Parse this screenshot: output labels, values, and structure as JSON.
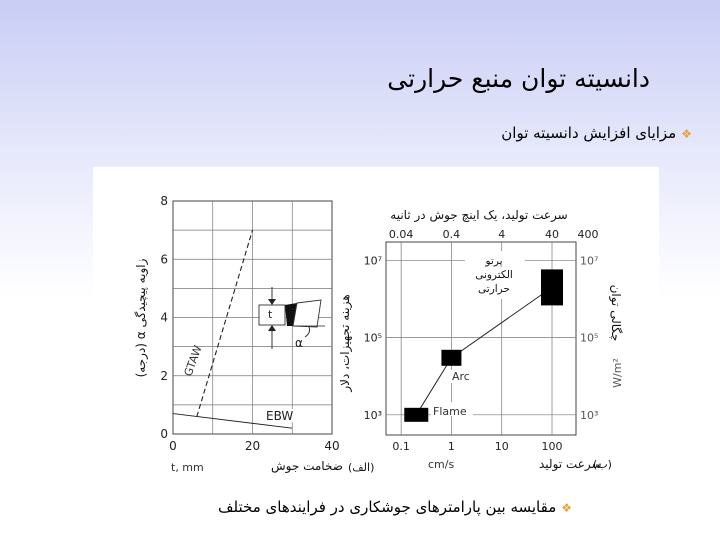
{
  "slide": {
    "title": "دانسیته توان منبع حرارتی",
    "bullet_top": "مزایای افزایش دانسیته توان",
    "bullet_bottom": "مقایسه بین پارامترهای جوشکاری در فرایندهای مختلف",
    "bullet_symbol": "❖",
    "accent_color": "#e8a33a"
  },
  "left_chart": {
    "panel_label": "(الف)",
    "ylabel": "زاویه پیچیدگی α (درجه)",
    "xlabel_unit": "t, mm",
    "xlabel": "ضخامت جوش",
    "x_ticks": [
      "0",
      "20",
      "40"
    ],
    "y_ticks": [
      "0",
      "2",
      "4",
      "6",
      "8"
    ],
    "inset_t": "t",
    "inset_alpha": "α",
    "curve_labels": {
      "gtaw": "GTAW",
      "ebw": "EBW"
    }
  },
  "right_chart": {
    "panel_label": "(ب)",
    "top_title": "سرعت تولید، یک اینچ جوش در ثانیه",
    "top_ticks": [
      "0.04",
      "0.4",
      "4",
      "40",
      "400"
    ],
    "bottom_ticks": [
      "0.1",
      "1",
      "10",
      "100"
    ],
    "xlabel_unit": "cm/s",
    "xlabel": "سرعت تولید",
    "ylabel_left": "هزینه تجهیزات، دلار",
    "ylabel_right": "چگالی توان",
    "ylabel_right_unit": "W/m²",
    "y_ticks_left": [
      "10³",
      "10⁵",
      "10⁷"
    ],
    "y_ticks_right": [
      "10³",
      "10⁵",
      "10⁷"
    ],
    "point_labels": {
      "flame": "Flame",
      "arc": "Arc",
      "ebeam_l1": "پرتو",
      "ebeam_l2": "الکترونی",
      "ebeam_l3": "حرارتی"
    }
  },
  "chart_data": [
    {
      "type": "line",
      "xlim": [
        0,
        40
      ],
      "ylim": [
        0,
        8
      ],
      "grid": true,
      "series": [
        {
          "name": "GTAW",
          "style": "dashed",
          "x": [
            6,
            20
          ],
          "y": [
            0.6,
            7.0
          ]
        },
        {
          "name": "EBW",
          "style": "solid",
          "x": [
            0,
            30
          ],
          "y": [
            0.7,
            0.2
          ]
        }
      ]
    },
    {
      "type": "line",
      "x_scale": "log",
      "y_scale": "log",
      "xlim": [
        0.05,
        300
      ],
      "ylim": [
        300,
        30000000
      ],
      "grid": true,
      "series": [
        {
          "markers": "square",
          "points": [
            {
              "label": "Flame",
              "x": 0.2,
              "y": 1000
            },
            {
              "label": "Arc",
              "x": 1,
              "y": 30000
            },
            {
              "label": "پرتو الکترونی حرارتی",
              "x": 100,
              "y": 2000000
            }
          ]
        }
      ]
    }
  ]
}
